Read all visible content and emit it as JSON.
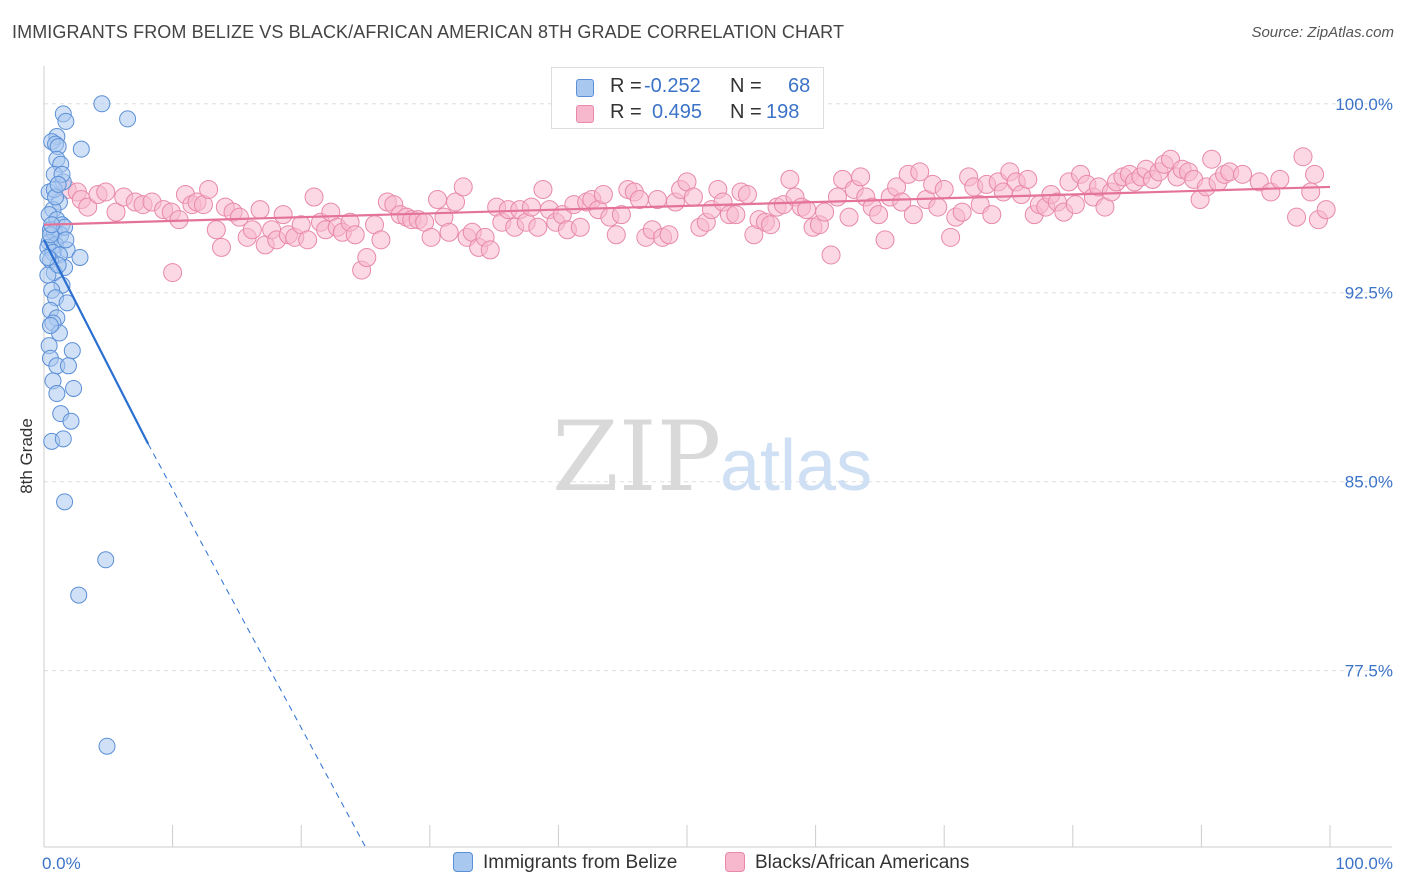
{
  "title": "IMMIGRANTS FROM BELIZE VS BLACK/AFRICAN AMERICAN 8TH GRADE CORRELATION CHART",
  "source": "Source: ZipAtlas.com",
  "watermark": {
    "zip": "ZIP",
    "atlas": "atlas"
  },
  "legend": {
    "rows": [
      {
        "r_label": "R =",
        "r_value": "-0.252",
        "n_label": "N =",
        "n_value": "68"
      },
      {
        "r_label": "R =",
        "r_value": "0.495",
        "n_label": "N =",
        "n_value": "198"
      }
    ]
  },
  "bottom_legend": {
    "series1": "Immigrants from Belize",
    "series2": "Blacks/African Americans"
  },
  "colors": {
    "blue_fill": "#a9c8f0",
    "blue_stroke": "#5b8fd6",
    "blue_line": "#2b6fd1",
    "pink_fill": "#f7b8cd",
    "pink_stroke": "#e889a8",
    "pink_line": "#e4739a",
    "grid": "#dddddd",
    "axis_label": "#3b73c8"
  },
  "chart_data": {
    "type": "scatter",
    "title": "IMMIGRANTS FROM BELIZE VS BLACK/AFRICAN AMERICAN 8TH GRADE CORRELATION CHART",
    "xlabel": "",
    "ylabel": "8th Grade",
    "xlim": [
      0,
      100
    ],
    "ylim": [
      70.5,
      101.5
    ],
    "y_ticks": [
      77.5,
      85.0,
      92.5,
      100.0
    ],
    "y_tick_labels": [
      "77.5%",
      "85.0%",
      "92.5%",
      "100.0%"
    ],
    "x_tick_labels": [
      "0.0%",
      "100.0%"
    ],
    "series": [
      {
        "name": "Immigrants from Belize",
        "R": -0.252,
        "N": 68,
        "trend": {
          "x0": 0,
          "y0": 94.6,
          "x1": 8.1,
          "y1": 86.5,
          "dashed_to_x": 25,
          "dashed_to_y": 70.5
        },
        "points": [
          [
            4.5,
            100.0
          ],
          [
            1.5,
            99.6
          ],
          [
            6.5,
            99.4
          ],
          [
            1.7,
            99.3
          ],
          [
            1.0,
            98.7
          ],
          [
            0.6,
            98.5
          ],
          [
            0.9,
            98.4
          ],
          [
            1.1,
            98.3
          ],
          [
            2.9,
            98.2
          ],
          [
            1.0,
            97.8
          ],
          [
            1.3,
            97.6
          ],
          [
            0.8,
            97.2
          ],
          [
            1.5,
            96.9
          ],
          [
            0.4,
            96.5
          ],
          [
            1.2,
            96.1
          ],
          [
            0.7,
            95.8
          ],
          [
            0.4,
            95.6
          ],
          [
            1.0,
            95.4
          ],
          [
            1.4,
            95.2
          ],
          [
            0.5,
            95.0
          ],
          [
            0.8,
            94.9
          ],
          [
            1.3,
            94.8
          ],
          [
            0.4,
            94.5
          ],
          [
            0.9,
            94.4
          ],
          [
            0.3,
            94.3
          ],
          [
            1.8,
            94.2
          ],
          [
            0.7,
            94.1
          ],
          [
            1.2,
            94.0
          ],
          [
            2.8,
            93.9
          ],
          [
            0.5,
            93.8
          ],
          [
            1.6,
            93.5
          ],
          [
            0.8,
            93.3
          ],
          [
            0.3,
            93.2
          ],
          [
            1.4,
            92.8
          ],
          [
            0.6,
            92.6
          ],
          [
            0.9,
            92.3
          ],
          [
            1.8,
            92.1
          ],
          [
            0.5,
            91.8
          ],
          [
            1.0,
            91.5
          ],
          [
            0.7,
            91.3
          ],
          [
            1.2,
            90.9
          ],
          [
            0.4,
            90.4
          ],
          [
            2.2,
            90.2
          ],
          [
            0.5,
            89.9
          ],
          [
            1.0,
            89.6
          ],
          [
            1.9,
            89.6
          ],
          [
            0.7,
            89.0
          ],
          [
            2.3,
            88.7
          ],
          [
            1.0,
            88.5
          ],
          [
            1.3,
            87.7
          ],
          [
            2.1,
            87.4
          ],
          [
            0.6,
            86.6
          ],
          [
            1.5,
            86.7
          ],
          [
            1.6,
            84.2
          ],
          [
            4.8,
            81.9
          ],
          [
            2.7,
            80.5
          ],
          [
            4.9,
            74.5
          ],
          [
            0.8,
            96.6
          ],
          [
            1.6,
            95.1
          ],
          [
            0.5,
            94.8
          ],
          [
            1.1,
            93.6
          ],
          [
            0.6,
            95.2
          ],
          [
            1.4,
            97.2
          ],
          [
            0.9,
            96.3
          ],
          [
            0.3,
            93.9
          ],
          [
            1.7,
            94.6
          ],
          [
            0.5,
            91.2
          ],
          [
            1.1,
            96.8
          ]
        ]
      },
      {
        "name": "Blacks/African Americans",
        "R": 0.495,
        "N": 198,
        "trend": {
          "x0": 0,
          "y0": 95.2,
          "x1": 100,
          "y1": 96.7
        },
        "points": [
          [
            1.8,
            96.6
          ],
          [
            2.6,
            96.5
          ],
          [
            2.9,
            96.2
          ],
          [
            3.4,
            95.9
          ],
          [
            4.2,
            96.4
          ],
          [
            4.8,
            96.5
          ],
          [
            5.6,
            95.7
          ],
          [
            6.2,
            96.3
          ],
          [
            7.1,
            96.1
          ],
          [
            7.7,
            96.0
          ],
          [
            8.4,
            96.1
          ],
          [
            9.3,
            95.8
          ],
          [
            9.9,
            95.7
          ],
          [
            10.0,
            93.3
          ],
          [
            10.5,
            95.4
          ],
          [
            11.0,
            96.4
          ],
          [
            11.5,
            96.0
          ],
          [
            11.9,
            96.1
          ],
          [
            12.4,
            96.0
          ],
          [
            12.8,
            96.6
          ],
          [
            13.4,
            95.0
          ],
          [
            13.8,
            94.3
          ],
          [
            14.1,
            95.9
          ],
          [
            14.7,
            95.7
          ],
          [
            15.2,
            95.5
          ],
          [
            15.8,
            94.7
          ],
          [
            16.2,
            95.0
          ],
          [
            16.8,
            95.8
          ],
          [
            17.2,
            94.4
          ],
          [
            17.7,
            95.0
          ],
          [
            18.1,
            94.6
          ],
          [
            18.6,
            95.6
          ],
          [
            19.0,
            94.8
          ],
          [
            19.5,
            94.7
          ],
          [
            20.0,
            95.2
          ],
          [
            20.5,
            94.6
          ],
          [
            21.0,
            96.3
          ],
          [
            21.5,
            95.3
          ],
          [
            21.9,
            95.0
          ],
          [
            22.3,
            95.7
          ],
          [
            22.8,
            95.1
          ],
          [
            23.2,
            94.9
          ],
          [
            23.8,
            95.3
          ],
          [
            24.2,
            94.8
          ],
          [
            24.7,
            93.4
          ],
          [
            25.1,
            93.9
          ],
          [
            25.7,
            95.2
          ],
          [
            26.2,
            94.6
          ],
          [
            26.7,
            96.1
          ],
          [
            27.2,
            96.0
          ],
          [
            27.7,
            95.6
          ],
          [
            28.2,
            95.5
          ],
          [
            28.6,
            95.4
          ],
          [
            29.1,
            95.4
          ],
          [
            29.6,
            95.3
          ],
          [
            30.1,
            94.7
          ],
          [
            30.6,
            96.2
          ],
          [
            31.1,
            95.5
          ],
          [
            31.5,
            94.9
          ],
          [
            32.0,
            96.1
          ],
          [
            32.6,
            96.7
          ],
          [
            32.9,
            94.7
          ],
          [
            33.3,
            94.9
          ],
          [
            33.8,
            94.3
          ],
          [
            34.3,
            94.7
          ],
          [
            34.7,
            94.2
          ],
          [
            35.2,
            95.9
          ],
          [
            35.6,
            95.3
          ],
          [
            36.1,
            95.8
          ],
          [
            36.6,
            95.1
          ],
          [
            37.0,
            95.8
          ],
          [
            37.5,
            95.3
          ],
          [
            37.9,
            95.9
          ],
          [
            38.4,
            95.1
          ],
          [
            38.8,
            96.6
          ],
          [
            39.3,
            95.8
          ],
          [
            39.8,
            95.3
          ],
          [
            40.3,
            95.6
          ],
          [
            40.7,
            95.0
          ],
          [
            41.2,
            96.0
          ],
          [
            41.7,
            95.1
          ],
          [
            42.2,
            96.1
          ],
          [
            42.6,
            96.2
          ],
          [
            43.1,
            95.8
          ],
          [
            43.5,
            96.4
          ],
          [
            44.0,
            95.5
          ],
          [
            44.5,
            94.8
          ],
          [
            44.9,
            95.6
          ],
          [
            45.4,
            96.6
          ],
          [
            45.9,
            96.5
          ],
          [
            46.3,
            96.2
          ],
          [
            46.8,
            94.7
          ],
          [
            47.3,
            95.0
          ],
          [
            47.7,
            96.2
          ],
          [
            48.1,
            94.7
          ],
          [
            48.6,
            94.8
          ],
          [
            49.1,
            96.1
          ],
          [
            49.5,
            96.6
          ],
          [
            50.0,
            96.9
          ],
          [
            50.5,
            96.3
          ],
          [
            51.0,
            95.1
          ],
          [
            51.5,
            95.3
          ],
          [
            51.9,
            95.8
          ],
          [
            52.4,
            96.6
          ],
          [
            52.8,
            96.1
          ],
          [
            53.3,
            95.6
          ],
          [
            53.8,
            95.6
          ],
          [
            54.2,
            96.5
          ],
          [
            54.7,
            96.4
          ],
          [
            55.2,
            94.8
          ],
          [
            55.6,
            95.4
          ],
          [
            56.1,
            95.3
          ],
          [
            56.5,
            95.2
          ],
          [
            57.0,
            95.9
          ],
          [
            57.5,
            96.0
          ],
          [
            58.0,
            97.0
          ],
          [
            58.4,
            96.3
          ],
          [
            58.9,
            95.9
          ],
          [
            59.3,
            95.8
          ],
          [
            59.8,
            95.1
          ],
          [
            60.3,
            95.2
          ],
          [
            60.7,
            95.7
          ],
          [
            61.2,
            94.0
          ],
          [
            61.7,
            96.3
          ],
          [
            62.1,
            97.0
          ],
          [
            62.6,
            95.5
          ],
          [
            63.0,
            96.6
          ],
          [
            63.5,
            97.1
          ],
          [
            63.9,
            96.3
          ],
          [
            64.4,
            95.9
          ],
          [
            64.9,
            95.6
          ],
          [
            65.4,
            94.6
          ],
          [
            65.8,
            96.3
          ],
          [
            66.3,
            96.7
          ],
          [
            66.7,
            96.1
          ],
          [
            67.2,
            97.2
          ],
          [
            67.6,
            95.6
          ],
          [
            68.1,
            97.3
          ],
          [
            68.6,
            96.2
          ],
          [
            69.1,
            96.8
          ],
          [
            69.5,
            95.9
          ],
          [
            70.0,
            96.6
          ],
          [
            70.5,
            94.7
          ],
          [
            70.9,
            95.5
          ],
          [
            71.4,
            95.7
          ],
          [
            71.9,
            97.1
          ],
          [
            72.3,
            96.7
          ],
          [
            72.8,
            96.0
          ],
          [
            73.3,
            96.8
          ],
          [
            73.7,
            95.6
          ],
          [
            74.2,
            96.9
          ],
          [
            74.6,
            96.5
          ],
          [
            75.1,
            97.3
          ],
          [
            75.6,
            96.9
          ],
          [
            76.0,
            96.4
          ],
          [
            76.5,
            97.0
          ],
          [
            77.0,
            95.6
          ],
          [
            77.4,
            96.0
          ],
          [
            77.9,
            95.9
          ],
          [
            78.3,
            96.4
          ],
          [
            78.8,
            96.1
          ],
          [
            79.3,
            95.7
          ],
          [
            79.7,
            96.9
          ],
          [
            80.2,
            96.0
          ],
          [
            80.6,
            97.2
          ],
          [
            81.1,
            96.8
          ],
          [
            81.6,
            96.3
          ],
          [
            82.0,
            96.7
          ],
          [
            82.5,
            95.9
          ],
          [
            83.0,
            96.5
          ],
          [
            83.4,
            96.9
          ],
          [
            83.9,
            97.1
          ],
          [
            84.4,
            97.2
          ],
          [
            84.8,
            96.9
          ],
          [
            85.3,
            97.1
          ],
          [
            85.7,
            97.4
          ],
          [
            86.2,
            97.0
          ],
          [
            86.7,
            97.3
          ],
          [
            87.1,
            97.6
          ],
          [
            87.6,
            97.8
          ],
          [
            88.1,
            97.1
          ],
          [
            88.5,
            97.4
          ],
          [
            89.0,
            97.3
          ],
          [
            89.4,
            97.0
          ],
          [
            89.9,
            96.2
          ],
          [
            90.4,
            96.7
          ],
          [
            90.8,
            97.8
          ],
          [
            91.3,
            96.9
          ],
          [
            91.8,
            97.2
          ],
          [
            92.2,
            97.3
          ],
          [
            93.2,
            97.2
          ],
          [
            94.5,
            96.9
          ],
          [
            95.4,
            96.5
          ],
          [
            96.1,
            97.0
          ],
          [
            97.4,
            95.5
          ],
          [
            97.9,
            97.9
          ],
          [
            98.5,
            96.5
          ],
          [
            99.1,
            95.4
          ],
          [
            99.7,
            95.8
          ],
          [
            98.8,
            97.2
          ]
        ]
      }
    ]
  }
}
